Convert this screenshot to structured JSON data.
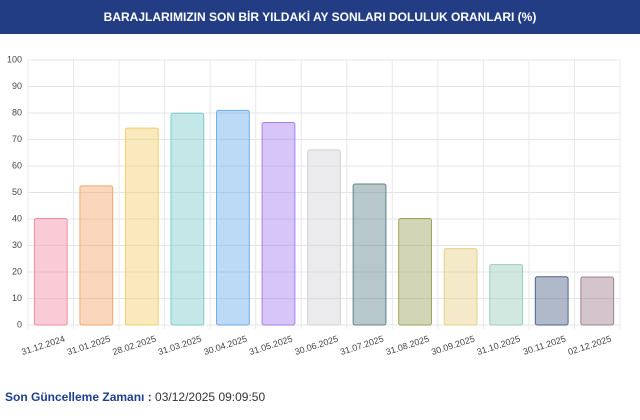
{
  "header": {
    "title": "BARAJLARIMIZIN SON BİR YILDAKİ AY SONLARI DOLULUK ORANLARI (%)"
  },
  "chart_data": {
    "type": "bar",
    "categories": [
      "31.12.2024",
      "31.01.2025",
      "28.02.2025",
      "31.03.2025",
      "30.04.2025",
      "31.05.2025",
      "30.06.2025",
      "31.07.2025",
      "31.08.2025",
      "30.09.2025",
      "31.10.2025",
      "30.11.2025",
      "02.12.2025"
    ],
    "values": [
      40.2,
      52.5,
      74.3,
      79.9,
      81.0,
      76.4,
      66.1,
      53.2,
      40.2,
      28.8,
      22.8,
      18.2,
      18.1
    ],
    "colors": [
      "#f08ca2",
      "#f4a76a",
      "#f3cf6a",
      "#7ccccc",
      "#6aaeec",
      "#a97ef0",
      "#d2d2d6",
      "#5f838c",
      "#9ea45e",
      "#e6cf86",
      "#9acdbb",
      "#4f6387",
      "#9f7f90"
    ],
    "ylim": [
      0,
      100
    ],
    "yticks": [
      0,
      10,
      20,
      30,
      40,
      50,
      60,
      70,
      80,
      90,
      100
    ],
    "grid": true
  },
  "footer": {
    "label": "Son Güncelleme Zamanı :",
    "value": "03/12/2025 09:09:50"
  }
}
